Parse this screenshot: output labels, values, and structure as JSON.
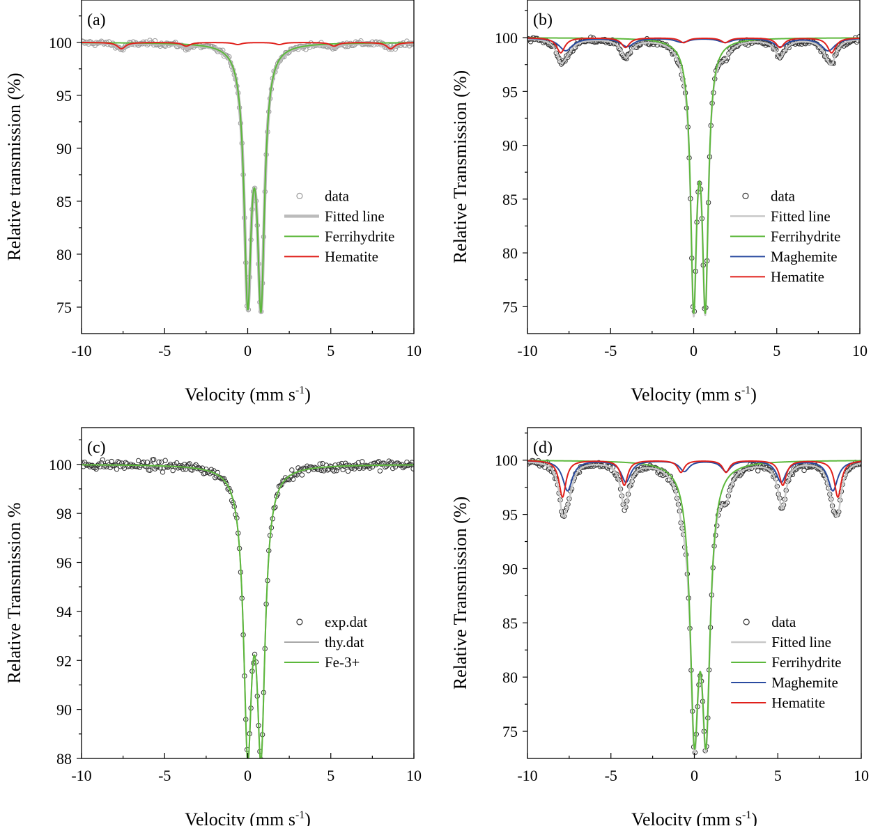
{
  "chart_data": [
    {
      "type": "line",
      "panel_label": "(a)",
      "xlabel": "Velocity (mm s",
      "xlabel_sup": "-1",
      "xlabel_end": ")",
      "ylabel": "Relative transmission (%)",
      "xlim": [
        -10,
        10
      ],
      "ylim": [
        72.5,
        104
      ],
      "x_ticks": [
        -10,
        -5,
        0,
        5,
        10
      ],
      "x_tick_labels": [
        "-10",
        "-5",
        "0",
        "5",
        "10"
      ],
      "y_ticks": [
        75,
        80,
        85,
        90,
        95,
        100
      ],
      "y_tick_labels": [
        "75",
        "80",
        "85",
        "90",
        "95",
        "100"
      ],
      "legend_position": "center-right",
      "series": [
        {
          "name": "data",
          "kind": "scatter",
          "color": "#999999",
          "noise": 0.17,
          "components": [
            "Ferrihydrite",
            "Hematite"
          ]
        },
        {
          "name": "Fitted line",
          "kind": "line",
          "color": "#bbbbbb",
          "width": 4.5,
          "components": [
            "Ferrihydrite",
            "Hematite"
          ]
        },
        {
          "name": "Ferrihydrite",
          "kind": "line",
          "color": "#5cb83b",
          "width": 2,
          "peaks": [
            [
              0.0,
              23.0,
              0.26
            ],
            [
              0.8,
              23.3,
              0.26
            ]
          ]
        },
        {
          "name": "Hematite",
          "kind": "line",
          "color": "#e0201b",
          "width": 2,
          "peaks": [
            [
              -7.6,
              0.6,
              0.3
            ],
            [
              -3.7,
              0.35,
              0.3
            ],
            [
              -0.6,
              0.2,
              0.3
            ],
            [
              1.9,
              0.2,
              0.3
            ],
            [
              5.2,
              0.35,
              0.3
            ],
            [
              8.6,
              0.6,
              0.3
            ]
          ]
        }
      ]
    },
    {
      "type": "line",
      "panel_label": "(b)",
      "xlabel": "Velocity (mm s",
      "xlabel_sup": "-1",
      "xlabel_end": ")",
      "ylabel": "Relative Transmission (%)",
      "xlim": [
        -10,
        10
      ],
      "ylim": [
        72.5,
        103.5
      ],
      "x_ticks": [
        -10,
        -5,
        0,
        5,
        10
      ],
      "x_tick_labels": [
        "-10",
        "-5",
        "0",
        "5",
        "10"
      ],
      "y_ticks": [
        75,
        80,
        85,
        90,
        95,
        100
      ],
      "y_tick_labels": [
        "75",
        "80",
        "85",
        "90",
        "95",
        "100"
      ],
      "legend_position": "center-right",
      "series": [
        {
          "name": "data",
          "kind": "scatter",
          "color": "#333333",
          "noise": 0.2,
          "components": [
            "Ferrihydrite",
            "Maghemite",
            "Hematite"
          ]
        },
        {
          "name": "Fitted line",
          "kind": "line",
          "color": "#c8c8c8",
          "width": 2.5,
          "components": [
            "Ferrihydrite",
            "Maghemite",
            "Hematite"
          ]
        },
        {
          "name": "Ferrihydrite",
          "kind": "line",
          "color": "#5cb83b",
          "width": 2,
          "peaks": [
            [
              0.0,
              23.5,
              0.22
            ],
            [
              0.7,
              23.5,
              0.22
            ]
          ]
        },
        {
          "name": "Maghemite",
          "kind": "line",
          "color": "#2a4ba0",
          "width": 2,
          "peaks": [
            [
              -7.7,
              1.2,
              0.5
            ],
            [
              -4.0,
              0.8,
              0.5
            ],
            [
              -0.7,
              0.4,
              0.5
            ],
            [
              1.9,
              0.4,
              0.5
            ],
            [
              5.2,
              0.8,
              0.5
            ],
            [
              8.1,
              1.2,
              0.5
            ]
          ]
        },
        {
          "name": "Hematite",
          "kind": "line",
          "color": "#e0201b",
          "width": 2,
          "peaks": [
            [
              -8.0,
              1.4,
              0.3
            ],
            [
              -4.1,
              0.9,
              0.3
            ],
            [
              -0.6,
              0.45,
              0.3
            ],
            [
              1.9,
              0.45,
              0.3
            ],
            [
              5.2,
              0.9,
              0.3
            ],
            [
              8.3,
              1.4,
              0.3
            ]
          ]
        }
      ]
    },
    {
      "type": "line",
      "panel_label": "(c)",
      "xlabel": "Velocity (mm s",
      "xlabel_sup": "-1",
      "xlabel_end": ")",
      "ylabel": "Relative Transmission %",
      "xlim": [
        -10,
        10
      ],
      "ylim": [
        88,
        101.5
      ],
      "x_ticks": [
        -10,
        -5,
        0,
        5,
        10
      ],
      "x_tick_labels": [
        "-10",
        "-5",
        "0",
        "5",
        "10"
      ],
      "y_ticks": [
        88,
        90,
        92,
        94,
        96,
        98,
        100
      ],
      "y_tick_labels": [
        "88",
        "90",
        "92",
        "94",
        "96",
        "98",
        "100"
      ],
      "legend_position": "center-right",
      "series": [
        {
          "name": "exp.dat",
          "kind": "scatter",
          "color": "#333333",
          "noise": 0.14,
          "components": [
            "Fe-3+"
          ]
        },
        {
          "name": "thy.dat",
          "kind": "line",
          "color": "#a8a8a8",
          "width": 2,
          "components": [
            "Fe-3+"
          ]
        },
        {
          "name": "Fe-3+",
          "kind": "line",
          "color": "#5cb83b",
          "width": 2,
          "peaks": [
            [
              0.0,
              10.8,
              0.3
            ],
            [
              0.8,
              10.8,
              0.3
            ]
          ]
        }
      ]
    },
    {
      "type": "line",
      "panel_label": "(d)",
      "xlabel": "Velocity (mm s",
      "xlabel_sup": "-1",
      "xlabel_end": ")",
      "ylabel": "Relative Transmission (%)",
      "xlim": [
        -10,
        10
      ],
      "ylim": [
        72.5,
        103
      ],
      "x_ticks": [
        -10,
        -5,
        0,
        5,
        10
      ],
      "x_tick_labels": [
        "-10",
        "-5",
        "0",
        "5",
        "10"
      ],
      "y_ticks": [
        75,
        80,
        85,
        90,
        95,
        100
      ],
      "y_tick_labels": [
        "75",
        "80",
        "85",
        "90",
        "95",
        "100"
      ],
      "legend_position": "center-right",
      "series": [
        {
          "name": "data",
          "kind": "scatter",
          "color": "#333333",
          "noise": 0.2,
          "components": [
            "Ferrihydrite",
            "Maghemite",
            "Hematite"
          ]
        },
        {
          "name": "Fitted line",
          "kind": "line",
          "color": "#c8c8c8",
          "width": 2.5,
          "components": [
            "Ferrihydrite",
            "Maghemite",
            "Hematite"
          ]
        },
        {
          "name": "Ferrihydrite",
          "kind": "line",
          "color": "#5cb83b",
          "width": 2,
          "peaks": [
            [
              0.0,
              23.0,
              0.3
            ],
            [
              0.7,
              23.0,
              0.3
            ]
          ]
        },
        {
          "name": "Maghemite",
          "kind": "line",
          "color": "#2a4ba0",
          "width": 2,
          "peaks": [
            [
              -7.6,
              2.8,
              0.35
            ],
            [
              -4.1,
              2.0,
              0.35
            ],
            [
              -0.6,
              1.0,
              0.35
            ],
            [
              1.9,
              1.0,
              0.35
            ],
            [
              5.2,
              2.0,
              0.35
            ],
            [
              8.3,
              2.8,
              0.35
            ]
          ]
        },
        {
          "name": "Hematite",
          "kind": "line",
          "color": "#e0201b",
          "width": 2,
          "peaks": [
            [
              -7.9,
              3.4,
              0.25
            ],
            [
              -4.2,
              2.3,
              0.25
            ],
            [
              -0.8,
              1.1,
              0.25
            ],
            [
              1.9,
              1.1,
              0.25
            ],
            [
              5.3,
              2.3,
              0.25
            ],
            [
              8.6,
              3.4,
              0.25
            ]
          ]
        }
      ]
    }
  ]
}
